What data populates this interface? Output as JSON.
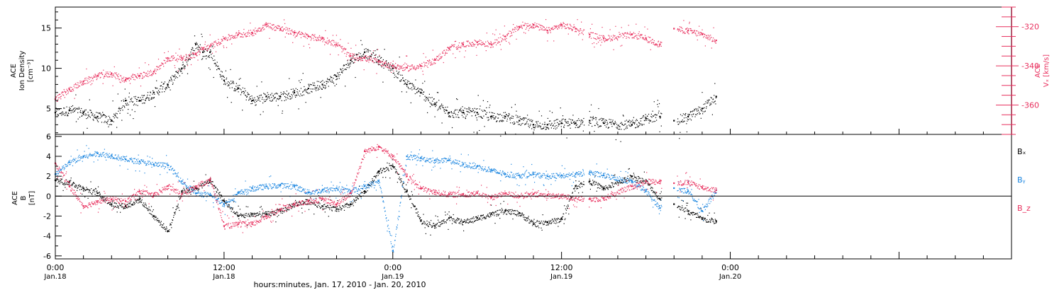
{
  "chart_data": [
    {
      "type": "scatter",
      "panel": "top",
      "xlabel": "hours:minutes, Jan. 17, 2010 - Jan. 20, 2010",
      "x_unit": "hours since Jan.18 00:00",
      "xlim": [
        0,
        68
      ],
      "x_ticks": [
        {
          "value": 0,
          "time": "0:00",
          "date": "Jan.18"
        },
        {
          "value": 12,
          "time": "12:00",
          "date": "Jan.18"
        },
        {
          "value": 24,
          "time": "0:00",
          "date": "Jan.19"
        },
        {
          "value": 36,
          "time": "12:00",
          "date": "Jan.19"
        },
        {
          "value": 48,
          "time": "0:00",
          "date": "Jan.20"
        }
      ],
      "left_axis": {
        "label_lines": [
          "ACE",
          "Ion Density",
          "[cm⁻³]"
        ],
        "ylim": [
          1.8,
          17.6
        ],
        "ticks": [
          5,
          10,
          15
        ],
        "color": "#000000"
      },
      "right_axis": {
        "label_lines": [
          "ACE",
          "Vₓ [km/s]"
        ],
        "ylim": [
          -375,
          -310
        ],
        "ticks": [
          -320,
          -340,
          -360
        ],
        "color": "#e8305e"
      },
      "series": [
        {
          "axis": "left",
          "color": "#000000",
          "x": [
            0,
            1,
            2,
            3,
            4,
            5,
            6,
            7,
            8,
            9,
            10,
            10.5,
            11,
            12,
            13,
            14,
            15,
            16,
            17,
            18,
            19,
            20,
            21,
            22,
            23,
            24,
            25,
            26,
            27,
            28,
            29,
            30,
            31,
            32,
            33,
            34,
            35,
            36,
            37,
            38,
            39,
            41,
            42,
            43,
            44,
            45,
            46,
            47
          ],
          "y": [
            4.5,
            4.8,
            4.5,
            4,
            3.5,
            6,
            6,
            7,
            8,
            10,
            13,
            12,
            12,
            8.5,
            7.5,
            6,
            6.5,
            6.5,
            7,
            7.5,
            8,
            9,
            11,
            12,
            11,
            10,
            8,
            7,
            5.5,
            4.5,
            4.5,
            4.5,
            4,
            4,
            3.5,
            3,
            3,
            3.2,
            3.2,
            3.5,
            3.2,
            3,
            3.8,
            4,
            3.5,
            4,
            5,
            6.5
          ]
        },
        {
          "axis": "right",
          "color": "#e8305e",
          "x": [
            0,
            1,
            2,
            3,
            4,
            5,
            6,
            7,
            8,
            9,
            10,
            10.5,
            11,
            12,
            13,
            14,
            15,
            16,
            17,
            18,
            19,
            20,
            21,
            22,
            23,
            24,
            25,
            26,
            27,
            28,
            29,
            30,
            31,
            32,
            33,
            34,
            35,
            36,
            37,
            38,
            39,
            41,
            42,
            43,
            44,
            45,
            46,
            47
          ],
          "y": [
            -357,
            -352,
            -348,
            -345,
            -344,
            -347,
            -345,
            -343,
            -336,
            -336,
            -334,
            -331,
            -330,
            -326,
            -324,
            -323,
            -319,
            -321,
            -323,
            -325,
            -326,
            -329,
            -335,
            -336,
            -338,
            -340,
            -341,
            -340,
            -337,
            -331,
            -329,
            -328,
            -329,
            -325,
            -320,
            -319,
            -322,
            -319,
            -321,
            -324,
            -326,
            -324,
            -326,
            -329,
            -321,
            -322,
            -324,
            -327
          ]
        }
      ],
      "grid": false
    },
    {
      "type": "scatter",
      "panel": "bottom",
      "xlim": [
        0,
        68
      ],
      "ylim": [
        -6.3,
        6.2
      ],
      "ylabel_lines": [
        "ACE",
        "B",
        "[nT]"
      ],
      "ticks": [
        6,
        4,
        2,
        0,
        -2,
        -4,
        -6
      ],
      "zero_line": true,
      "grid": false,
      "series": [
        {
          "name": "Bₓ",
          "color": "#000000",
          "x": [
            0,
            1,
            2,
            3,
            4,
            5,
            6,
            7,
            8,
            9,
            10,
            11,
            12,
            13,
            14,
            15,
            16,
            17,
            18,
            19,
            20,
            21,
            22,
            23,
            24,
            25,
            26,
            27,
            28,
            29,
            30,
            31,
            32,
            33,
            34,
            35,
            36,
            37,
            38,
            39,
            41,
            42,
            43,
            44,
            45,
            46,
            47
          ],
          "y": [
            1.6,
            1.4,
            0.8,
            0.3,
            -0.8,
            -1,
            -0.3,
            -2,
            -3.5,
            0.5,
            0.8,
            1.6,
            -0.5,
            -2,
            -1.8,
            -1.8,
            -1.5,
            -0.8,
            -0.5,
            -1,
            -1.3,
            -0.8,
            0.5,
            2.5,
            3,
            0.5,
            -2.5,
            -3,
            -2.2,
            -2.6,
            -2.2,
            -1.8,
            -1.5,
            -1.7,
            -2.8,
            -2.6,
            -2.3,
            1,
            1.5,
            0.8,
            2,
            1.5,
            -0.3,
            -0.8,
            -1.5,
            -2.3,
            -2.5
          ]
        },
        {
          "name": "Bᵧ",
          "color": "#1a85e0",
          "x": [
            0,
            1,
            2,
            3,
            4,
            5,
            6,
            7,
            8,
            9,
            10,
            11,
            12,
            13,
            14,
            15,
            16,
            17,
            18,
            19,
            20,
            21,
            22,
            23,
            24,
            25,
            26,
            27,
            28,
            29,
            30,
            31,
            32,
            33,
            34,
            35,
            36,
            37,
            38,
            39,
            41,
            42,
            43,
            44,
            45,
            46,
            47
          ],
          "y": [
            2.2,
            3.4,
            4,
            4.3,
            4.1,
            3.7,
            3.5,
            3.2,
            3.1,
            1.5,
            0.3,
            0.1,
            -0.8,
            0.3,
            0.8,
            1,
            1.1,
            1,
            0.4,
            0.6,
            0.8,
            0.5,
            1,
            1.5,
            -5.5,
            4,
            3.8,
            3.6,
            3.6,
            3.2,
            3,
            2.6,
            2.2,
            2.1,
            2.2,
            2,
            2.1,
            2.2,
            2.4,
            2.1,
            1.5,
            0.5,
            -1.2,
            0.8,
            0.5,
            -1.5,
            0.6
          ]
        },
        {
          "name": "B_z",
          "color": "#e8305e",
          "x": [
            0,
            1,
            2,
            3,
            4,
            5,
            6,
            7,
            8,
            9,
            10,
            11,
            12,
            13,
            14,
            15,
            16,
            17,
            18,
            19,
            20,
            21,
            22,
            23,
            24,
            25,
            26,
            27,
            28,
            29,
            30,
            31,
            32,
            33,
            34,
            35,
            36,
            37,
            38,
            39,
            41,
            42,
            43,
            44,
            45,
            46,
            47
          ],
          "y": [
            3.3,
            1,
            -1,
            -0.5,
            -0.3,
            -0.5,
            0.5,
            0.1,
            1,
            0.2,
            1,
            1.7,
            -3,
            -2.8,
            -2.8,
            -2,
            -1.3,
            -0.8,
            -0.5,
            -0.3,
            -0.8,
            0.3,
            4.5,
            5,
            4,
            2,
            0.8,
            0.4,
            0.2,
            0.2,
            0.3,
            -0.1,
            0.3,
            0,
            0.2,
            0.1,
            0,
            -0.2,
            -0.3,
            -0.2,
            1,
            1.5,
            1.5,
            1.3,
            1.4,
            0.9,
            0.6
          ]
        }
      ]
    }
  ]
}
